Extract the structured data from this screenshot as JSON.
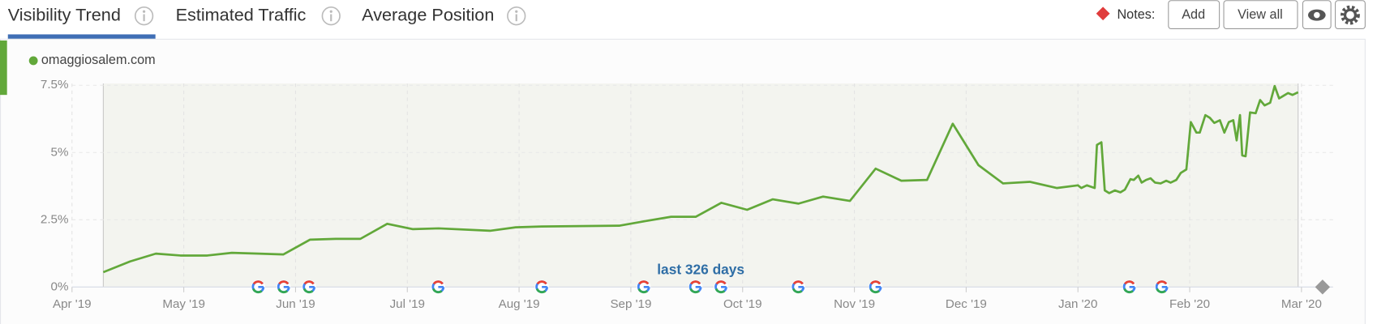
{
  "tabs": [
    "Visibility Trend",
    "Estimated Traffic",
    "Average Position"
  ],
  "notes": {
    "label": "Notes:",
    "buttons": [
      "Add",
      "View all"
    ]
  },
  "chart_data": {
    "type": "line",
    "annotation": "last 326 days",
    "x": [
      0.28,
      0.52,
      0.75,
      0.97,
      1.21,
      1.43,
      1.67,
      1.89,
      2.13,
      2.36,
      2.58,
      2.82,
      3.05,
      3.28,
      3.74,
      3.97,
      4.2,
      4.9,
      5.13,
      5.36,
      5.58,
      5.81,
      6.04,
      6.27,
      6.5,
      6.72,
      6.96,
      7.19,
      7.42,
      7.65,
      7.88,
      8.11,
      8.33,
      8.57,
      8.81,
      9.0,
      9.03,
      9.08,
      9.15,
      9.17,
      9.21,
      9.24,
      9.28,
      9.33,
      9.38,
      9.42,
      9.47,
      9.5,
      9.54,
      9.57,
      9.61,
      9.65,
      9.69,
      9.74,
      9.79,
      9.83,
      9.88,
      9.92,
      9.97,
      10.01,
      10.06,
      10.09,
      10.14,
      10.18,
      10.22,
      10.27,
      10.31,
      10.35,
      10.39,
      10.42,
      10.45,
      10.47,
      10.5,
      10.54,
      10.59,
      10.63,
      10.67,
      10.72,
      10.76,
      10.8,
      10.84,
      10.88,
      10.92,
      10.97
    ],
    "series": [
      {
        "name": "omaggiosalem.com",
        "color": "#62a83a",
        "values": [
          0.55,
          0.95,
          1.24,
          1.17,
          1.17,
          1.27,
          1.24,
          1.21,
          1.76,
          1.79,
          1.79,
          2.35,
          2.15,
          2.18,
          2.09,
          2.22,
          2.25,
          2.28,
          2.45,
          2.61,
          2.61,
          3.13,
          2.87,
          3.26,
          3.1,
          3.36,
          3.2,
          4.4,
          3.95,
          3.98,
          6.07,
          4.53,
          3.85,
          3.91,
          3.68,
          3.78,
          3.68,
          3.78,
          3.68,
          5.28,
          5.38,
          3.59,
          3.49,
          3.59,
          3.52,
          3.62,
          4.01,
          3.98,
          4.14,
          3.88,
          3.98,
          4.04,
          3.88,
          3.85,
          3.95,
          3.88,
          3.98,
          4.24,
          4.37,
          6.13,
          5.74,
          5.74,
          6.39,
          6.29,
          6.1,
          6.2,
          5.74,
          6.13,
          6.2,
          5.45,
          6.39,
          4.89,
          4.86,
          6.49,
          6.46,
          6.95,
          6.75,
          6.85,
          7.47,
          7.01,
          7.11,
          7.21,
          7.14,
          7.24
        ]
      }
    ],
    "xlim": [
      0,
      11.22
    ],
    "xticks": [
      {
        "value": 0,
        "label": "Apr '19"
      },
      {
        "value": 1,
        "label": "May '19"
      },
      {
        "value": 2,
        "label": "Jun '19"
      },
      {
        "value": 3,
        "label": "Jul '19"
      },
      {
        "value": 4,
        "label": "Aug '19"
      },
      {
        "value": 5,
        "label": "Sep '19"
      },
      {
        "value": 6,
        "label": "Oct '19"
      },
      {
        "value": 7,
        "label": "Nov '19"
      },
      {
        "value": 8,
        "label": "Dec '19"
      },
      {
        "value": 9,
        "label": "Jan '20"
      },
      {
        "value": 10,
        "label": "Feb '20"
      },
      {
        "value": 11,
        "label": "Mar '20"
      }
    ],
    "ylim": [
      0,
      7.5
    ],
    "yticks": [
      {
        "value": 0,
        "label": "0%"
      },
      {
        "value": 2.5,
        "label": "2.5%"
      },
      {
        "value": 5,
        "label": "5%"
      },
      {
        "value": 7.5,
        "label": "7.5%"
      }
    ],
    "grid": true
  }
}
